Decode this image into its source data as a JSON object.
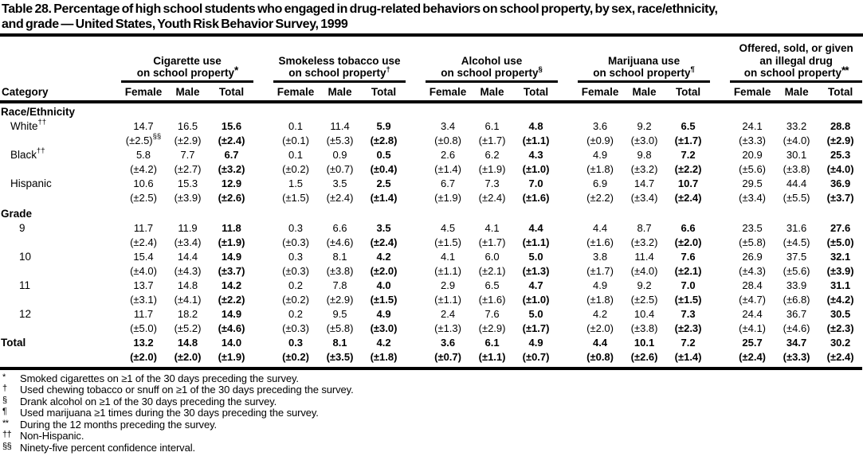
{
  "title": {
    "line1": "Table 28. Percentage of high school students who engaged in drug-related behaviors on school property, by sex, race/ethnicity,",
    "line2": "and grade — United States, Youth Risk Behavior Survey, 1999"
  },
  "table": {
    "category_header": "Category",
    "sub_headers": [
      "Female",
      "Male",
      "Total"
    ],
    "groups": [
      {
        "lines": [
          "Cigarette use",
          "on school property"
        ],
        "sup": "*"
      },
      {
        "lines": [
          "Smokeless tobacco use",
          "on school property"
        ],
        "sup": "†"
      },
      {
        "lines": [
          "Alcohol use",
          "on school property"
        ],
        "sup": "§"
      },
      {
        "lines": [
          "Marijuana use",
          "on school property"
        ],
        "sup": "¶"
      },
      {
        "lines": [
          "Offered, sold, or given",
          "an illegal drug",
          "on school property"
        ],
        "sup": "**"
      }
    ],
    "sections": [
      {
        "label": "Race/Ethnicity",
        "rows": [
          {
            "label": "White",
            "sup": "††",
            "values": [
              "14.7",
              "16.5",
              "15.6",
              "0.1",
              "11.4",
              "5.9",
              "3.4",
              "6.1",
              "4.8",
              "3.6",
              "9.2",
              "6.5",
              "24.1",
              "33.2",
              "28.8"
            ],
            "cis": [
              "(±2.5)",
              "(±2.9)",
              "(±2.4)",
              "(±0.1)",
              "(±5.3)",
              "(±2.8)",
              "(±0.8)",
              "(±1.7)",
              "(±1.1)",
              "(±0.9)",
              "(±3.0)",
              "(±1.7)",
              "(±3.3)",
              "(±4.0)",
              "(±2.9)"
            ],
            "ci_sup": {
              "index": 0,
              "mark": "§§"
            }
          },
          {
            "label": "Black",
            "sup": "††",
            "values": [
              "5.8",
              "7.7",
              "6.7",
              "0.1",
              "0.9",
              "0.5",
              "2.6",
              "6.2",
              "4.3",
              "4.9",
              "9.8",
              "7.2",
              "20.9",
              "30.1",
              "25.3"
            ],
            "cis": [
              "(±4.2)",
              "(±2.7)",
              "(±3.2)",
              "(±0.2)",
              "(±0.7)",
              "(±0.4)",
              "(±1.4)",
              "(±1.9)",
              "(±1.0)",
              "(±1.8)",
              "(±3.2)",
              "(±2.2)",
              "(±5.6)",
              "(±3.8)",
              "(±4.0)"
            ]
          },
          {
            "label": "Hispanic",
            "values": [
              "10.6",
              "15.3",
              "12.9",
              "1.5",
              "3.5",
              "2.5",
              "6.7",
              "7.3",
              "7.0",
              "6.9",
              "14.7",
              "10.7",
              "29.5",
              "44.4",
              "36.9"
            ],
            "cis": [
              "(±2.5)",
              "(±3.9)",
              "(±2.6)",
              "(±1.5)",
              "(±2.4)",
              "(±1.4)",
              "(±1.9)",
              "(±2.4)",
              "(±1.6)",
              "(±2.2)",
              "(±3.4)",
              "(±2.4)",
              "(±3.4)",
              "(±5.5)",
              "(±3.7)"
            ]
          }
        ]
      },
      {
        "label": "Grade",
        "rows": [
          {
            "label": "9",
            "values": [
              "11.7",
              "11.9",
              "11.8",
              "0.3",
              "6.6",
              "3.5",
              "4.5",
              "4.1",
              "4.4",
              "4.4",
              "8.7",
              "6.6",
              "23.5",
              "31.6",
              "27.6"
            ],
            "cis": [
              "(±2.4)",
              "(±3.4)",
              "(±1.9)",
              "(±0.3)",
              "(±4.6)",
              "(±2.4)",
              "(±1.5)",
              "(±1.7)",
              "(±1.1)",
              "(±1.6)",
              "(±3.2)",
              "(±2.0)",
              "(±5.8)",
              "(±4.5)",
              "(±5.0)"
            ]
          },
          {
            "label": "10",
            "values": [
              "15.4",
              "14.4",
              "14.9",
              "0.3",
              "8.1",
              "4.2",
              "4.1",
              "6.0",
              "5.0",
              "3.8",
              "11.4",
              "7.6",
              "26.9",
              "37.5",
              "32.1"
            ],
            "cis": [
              "(±4.0)",
              "(±4.3)",
              "(±3.7)",
              "(±0.3)",
              "(±3.8)",
              "(±2.0)",
              "(±1.1)",
              "(±2.1)",
              "(±1.3)",
              "(±1.7)",
              "(±4.0)",
              "(±2.1)",
              "(±4.3)",
              "(±5.6)",
              "(±3.9)"
            ]
          },
          {
            "label": "11",
            "values": [
              "13.7",
              "14.8",
              "14.2",
              "0.2",
              "7.8",
              "4.0",
              "2.9",
              "6.5",
              "4.7",
              "4.9",
              "9.2",
              "7.0",
              "28.4",
              "33.9",
              "31.1"
            ],
            "cis": [
              "(±3.1)",
              "(±4.1)",
              "(±2.2)",
              "(±0.2)",
              "(±2.9)",
              "(±1.5)",
              "(±1.1)",
              "(±1.6)",
              "(±1.0)",
              "(±1.8)",
              "(±2.5)",
              "(±1.5)",
              "(±4.7)",
              "(±6.8)",
              "(±4.2)"
            ]
          },
          {
            "label": "12",
            "values": [
              "11.7",
              "18.2",
              "14.9",
              "0.2",
              "9.5",
              "4.9",
              "2.4",
              "7.6",
              "5.0",
              "4.2",
              "10.4",
              "7.3",
              "24.4",
              "36.7",
              "30.5"
            ],
            "cis": [
              "(±5.0)",
              "(±5.2)",
              "(±4.6)",
              "(±0.3)",
              "(±5.8)",
              "(±3.0)",
              "(±1.3)",
              "(±2.9)",
              "(±1.7)",
              "(±2.0)",
              "(±3.8)",
              "(±2.3)",
              "(±4.1)",
              "(±4.6)",
              "(±2.3)"
            ]
          }
        ]
      }
    ],
    "total_row": {
      "label": "Total",
      "values": [
        "13.2",
        "14.8",
        "14.0",
        "0.3",
        "8.1",
        "4.2",
        "3.6",
        "6.1",
        "4.9",
        "4.4",
        "10.1",
        "7.2",
        "25.7",
        "34.7",
        "30.2"
      ],
      "cis": [
        "(±2.0)",
        "(±2.0)",
        "(±1.9)",
        "(±0.2)",
        "(±3.5)",
        "(±1.8)",
        "(±0.7)",
        "(±1.1)",
        "(±0.7)",
        "(±0.8)",
        "(±2.6)",
        "(±1.4)",
        "(±2.4)",
        "(±3.3)",
        "(±2.4)"
      ]
    }
  },
  "footnotes": [
    {
      "marker": "*",
      "text": "Smoked cigarettes on ≥1 of the 30 days preceding the survey."
    },
    {
      "marker": "†",
      "text": "Used chewing tobacco or snuff on ≥1 of the 30 days preceding the survey."
    },
    {
      "marker": "§",
      "text": "Drank alcohol on ≥1 of the 30 days preceding the survey."
    },
    {
      "marker": "¶",
      "text": "Used marijuana ≥1 times during the 30 days preceding the survey."
    },
    {
      "marker": "**",
      "text": "During the 12 months preceding the survey."
    },
    {
      "marker": "††",
      "text": "Non-Hispanic."
    },
    {
      "marker": "§§",
      "text": "Ninety-five percent confidence interval."
    }
  ]
}
